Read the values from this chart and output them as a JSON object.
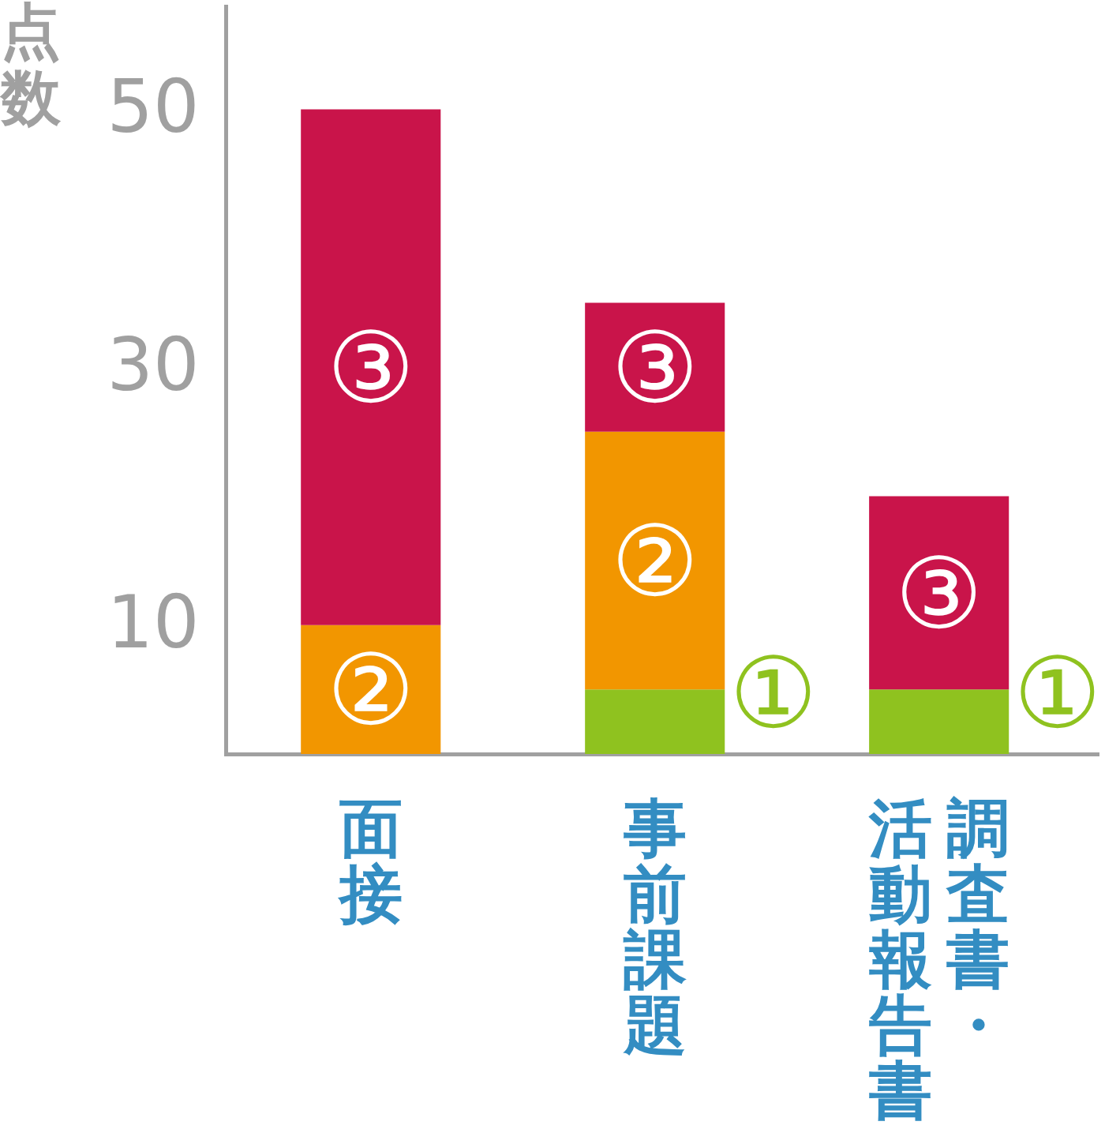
{
  "chart_data": {
    "type": "bar",
    "ylabel": "点数",
    "categories": [
      "面接",
      "事前課題",
      "調査書・活動報告書"
    ],
    "stacked": true,
    "series": [
      {
        "name": "①",
        "color": "#8fc21f",
        "values": [
          null,
          5,
          5
        ]
      },
      {
        "name": "②",
        "color": "#f29600",
        "values": [
          10,
          20,
          null
        ]
      },
      {
        "name": "③",
        "color": "#c9144a",
        "values": [
          40,
          10,
          15
        ]
      }
    ],
    "ylim": [
      0,
      58
    ],
    "yticks": [
      10,
      30,
      50
    ]
  }
}
